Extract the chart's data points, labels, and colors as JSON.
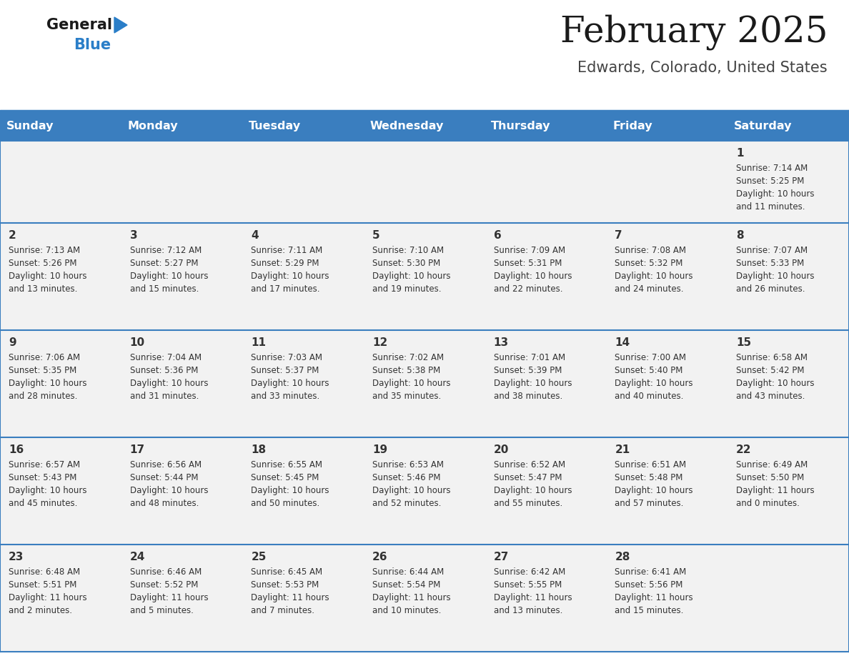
{
  "title": "February 2025",
  "subtitle": "Edwards, Colorado, United States",
  "days_of_week": [
    "Sunday",
    "Monday",
    "Tuesday",
    "Wednesday",
    "Thursday",
    "Friday",
    "Saturday"
  ],
  "header_bg": "#3a7ebf",
  "header_text": "#ffffff",
  "cell_bg": "#f2f2f2",
  "cell_text": "#333333",
  "border_color": "#3a7ebf",
  "title_color": "#1a1a1a",
  "subtitle_color": "#444444",
  "logo_general_color": "#1a1a1a",
  "logo_blue_color": "#2a7ec8",
  "fig_width": 11.88,
  "fig_height": 9.18,
  "calendar_data": [
    {
      "day": 1,
      "col": 6,
      "row": 0,
      "sunrise": "7:14 AM",
      "sunset": "5:25 PM",
      "daylight_h": "10 hours",
      "daylight_m": "11 minutes"
    },
    {
      "day": 2,
      "col": 0,
      "row": 1,
      "sunrise": "7:13 AM",
      "sunset": "5:26 PM",
      "daylight_h": "10 hours",
      "daylight_m": "13 minutes"
    },
    {
      "day": 3,
      "col": 1,
      "row": 1,
      "sunrise": "7:12 AM",
      "sunset": "5:27 PM",
      "daylight_h": "10 hours",
      "daylight_m": "15 minutes"
    },
    {
      "day": 4,
      "col": 2,
      "row": 1,
      "sunrise": "7:11 AM",
      "sunset": "5:29 PM",
      "daylight_h": "10 hours",
      "daylight_m": "17 minutes"
    },
    {
      "day": 5,
      "col": 3,
      "row": 1,
      "sunrise": "7:10 AM",
      "sunset": "5:30 PM",
      "daylight_h": "10 hours",
      "daylight_m": "19 minutes"
    },
    {
      "day": 6,
      "col": 4,
      "row": 1,
      "sunrise": "7:09 AM",
      "sunset": "5:31 PM",
      "daylight_h": "10 hours",
      "daylight_m": "22 minutes"
    },
    {
      "day": 7,
      "col": 5,
      "row": 1,
      "sunrise": "7:08 AM",
      "sunset": "5:32 PM",
      "daylight_h": "10 hours",
      "daylight_m": "24 minutes"
    },
    {
      "day": 8,
      "col": 6,
      "row": 1,
      "sunrise": "7:07 AM",
      "sunset": "5:33 PM",
      "daylight_h": "10 hours",
      "daylight_m": "26 minutes"
    },
    {
      "day": 9,
      "col": 0,
      "row": 2,
      "sunrise": "7:06 AM",
      "sunset": "5:35 PM",
      "daylight_h": "10 hours",
      "daylight_m": "28 minutes"
    },
    {
      "day": 10,
      "col": 1,
      "row": 2,
      "sunrise": "7:04 AM",
      "sunset": "5:36 PM",
      "daylight_h": "10 hours",
      "daylight_m": "31 minutes"
    },
    {
      "day": 11,
      "col": 2,
      "row": 2,
      "sunrise": "7:03 AM",
      "sunset": "5:37 PM",
      "daylight_h": "10 hours",
      "daylight_m": "33 minutes"
    },
    {
      "day": 12,
      "col": 3,
      "row": 2,
      "sunrise": "7:02 AM",
      "sunset": "5:38 PM",
      "daylight_h": "10 hours",
      "daylight_m": "35 minutes"
    },
    {
      "day": 13,
      "col": 4,
      "row": 2,
      "sunrise": "7:01 AM",
      "sunset": "5:39 PM",
      "daylight_h": "10 hours",
      "daylight_m": "38 minutes"
    },
    {
      "day": 14,
      "col": 5,
      "row": 2,
      "sunrise": "7:00 AM",
      "sunset": "5:40 PM",
      "daylight_h": "10 hours",
      "daylight_m": "40 minutes"
    },
    {
      "day": 15,
      "col": 6,
      "row": 2,
      "sunrise": "6:58 AM",
      "sunset": "5:42 PM",
      "daylight_h": "10 hours",
      "daylight_m": "43 minutes"
    },
    {
      "day": 16,
      "col": 0,
      "row": 3,
      "sunrise": "6:57 AM",
      "sunset": "5:43 PM",
      "daylight_h": "10 hours",
      "daylight_m": "45 minutes"
    },
    {
      "day": 17,
      "col": 1,
      "row": 3,
      "sunrise": "6:56 AM",
      "sunset": "5:44 PM",
      "daylight_h": "10 hours",
      "daylight_m": "48 minutes"
    },
    {
      "day": 18,
      "col": 2,
      "row": 3,
      "sunrise": "6:55 AM",
      "sunset": "5:45 PM",
      "daylight_h": "10 hours",
      "daylight_m": "50 minutes"
    },
    {
      "day": 19,
      "col": 3,
      "row": 3,
      "sunrise": "6:53 AM",
      "sunset": "5:46 PM",
      "daylight_h": "10 hours",
      "daylight_m": "52 minutes"
    },
    {
      "day": 20,
      "col": 4,
      "row": 3,
      "sunrise": "6:52 AM",
      "sunset": "5:47 PM",
      "daylight_h": "10 hours",
      "daylight_m": "55 minutes"
    },
    {
      "day": 21,
      "col": 5,
      "row": 3,
      "sunrise": "6:51 AM",
      "sunset": "5:48 PM",
      "daylight_h": "10 hours",
      "daylight_m": "57 minutes"
    },
    {
      "day": 22,
      "col": 6,
      "row": 3,
      "sunrise": "6:49 AM",
      "sunset": "5:50 PM",
      "daylight_h": "11 hours",
      "daylight_m": "0 minutes"
    },
    {
      "day": 23,
      "col": 0,
      "row": 4,
      "sunrise": "6:48 AM",
      "sunset": "5:51 PM",
      "daylight_h": "11 hours",
      "daylight_m": "2 minutes"
    },
    {
      "day": 24,
      "col": 1,
      "row": 4,
      "sunrise": "6:46 AM",
      "sunset": "5:52 PM",
      "daylight_h": "11 hours",
      "daylight_m": "5 minutes"
    },
    {
      "day": 25,
      "col": 2,
      "row": 4,
      "sunrise": "6:45 AM",
      "sunset": "5:53 PM",
      "daylight_h": "11 hours",
      "daylight_m": "7 minutes"
    },
    {
      "day": 26,
      "col": 3,
      "row": 4,
      "sunrise": "6:44 AM",
      "sunset": "5:54 PM",
      "daylight_h": "11 hours",
      "daylight_m": "10 minutes"
    },
    {
      "day": 27,
      "col": 4,
      "row": 4,
      "sunrise": "6:42 AM",
      "sunset": "5:55 PM",
      "daylight_h": "11 hours",
      "daylight_m": "13 minutes"
    },
    {
      "day": 28,
      "col": 5,
      "row": 4,
      "sunrise": "6:41 AM",
      "sunset": "5:56 PM",
      "daylight_h": "11 hours",
      "daylight_m": "15 minutes"
    }
  ]
}
